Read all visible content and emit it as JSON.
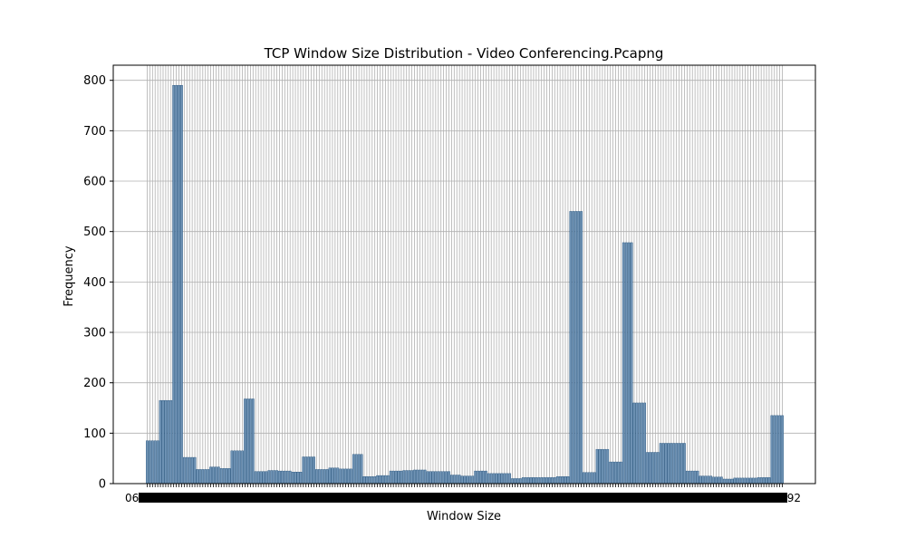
{
  "chart_data": {
    "type": "bar",
    "title": "TCP Window Size Distribution - Video Conferencing.Pcapng",
    "xlabel": "Window Size",
    "ylabel": "Frequency",
    "ylim": [
      0,
      830
    ],
    "yticks": [
      0,
      100,
      200,
      300,
      400,
      500,
      600,
      700,
      800
    ],
    "grid": true,
    "bar_color": "#6f93b5",
    "bar_edge_color": "#1f4e79",
    "x_tick_start_label": "063",
    "x_tick_end_label": "5592",
    "values": [
      85,
      85,
      85,
      85,
      85,
      165,
      165,
      165,
      165,
      165,
      790,
      790,
      790,
      790,
      52,
      52,
      52,
      52,
      52,
      28,
      28,
      28,
      28,
      28,
      33,
      33,
      33,
      33,
      30,
      30,
      30,
      30,
      65,
      65,
      65,
      65,
      65,
      168,
      168,
      168,
      168,
      24,
      24,
      24,
      24,
      24,
      26,
      26,
      26,
      26,
      25,
      25,
      25,
      25,
      25,
      23,
      23,
      23,
      23,
      53,
      53,
      53,
      53,
      53,
      28,
      28,
      28,
      28,
      28,
      31,
      31,
      31,
      31,
      29,
      29,
      29,
      29,
      29,
      58,
      58,
      58,
      58,
      14,
      14,
      14,
      14,
      14,
      16,
      16,
      16,
      16,
      16,
      25,
      25,
      25,
      25,
      25,
      26,
      26,
      26,
      26,
      27,
      27,
      27,
      27,
      27,
      24,
      24,
      24,
      24,
      24,
      24,
      24,
      24,
      24,
      17,
      17,
      17,
      17,
      15,
      15,
      15,
      15,
      15,
      25,
      25,
      25,
      25,
      25,
      20,
      20,
      20,
      20,
      20,
      20,
      20,
      20,
      20,
      10,
      10,
      10,
      10,
      12,
      12,
      12,
      12,
      12,
      12,
      12,
      12,
      12,
      12,
      12,
      12,
      12,
      14,
      14,
      14,
      14,
      14,
      540,
      540,
      540,
      540,
      540,
      22,
      22,
      22,
      22,
      22,
      68,
      68,
      68,
      68,
      68,
      43,
      43,
      43,
      43,
      43,
      478,
      478,
      478,
      478,
      160,
      160,
      160,
      160,
      160,
      62,
      62,
      62,
      62,
      62,
      80,
      80,
      80,
      80,
      80,
      80,
      80,
      80,
      80,
      80,
      25,
      25,
      25,
      25,
      25,
      15,
      15,
      15,
      15,
      15,
      13,
      13,
      13,
      13,
      9,
      9,
      9,
      9,
      11,
      11,
      11,
      11,
      11,
      11,
      11,
      11,
      11,
      12,
      12,
      12,
      12,
      12,
      135,
      135,
      135,
      135,
      135
    ]
  }
}
